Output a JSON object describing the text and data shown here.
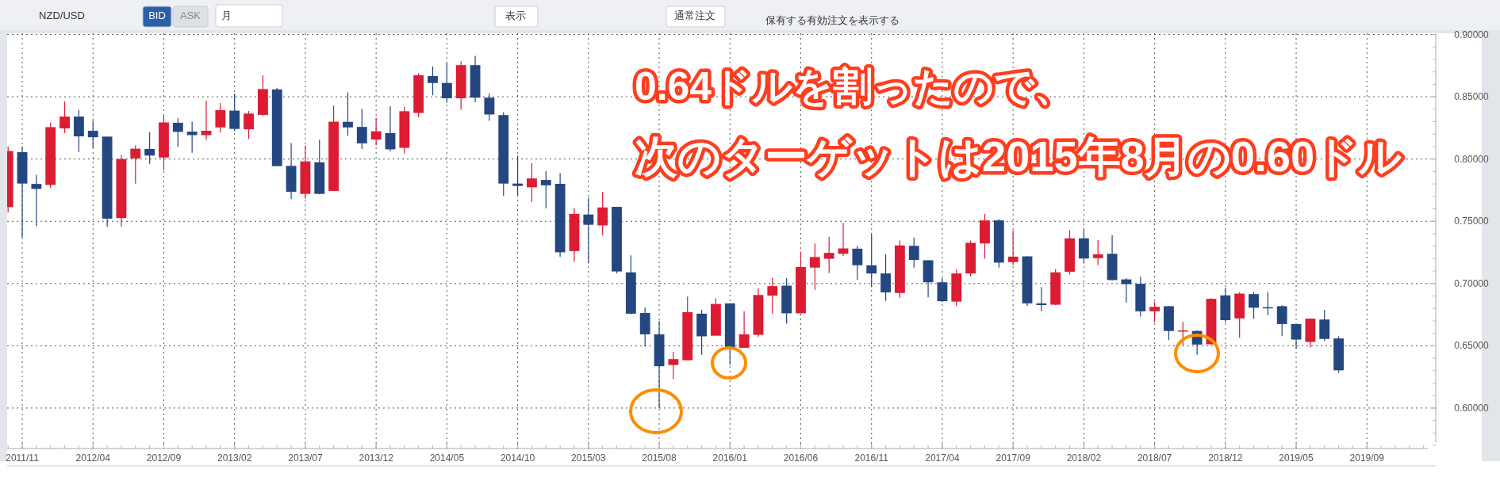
{
  "chart_data": {
    "type": "candlestick",
    "title": "0.64ドルを割ったので、",
    "subtitle": "次のターゲットは2015年8月の0.60ドル",
    "annotations": [
      "NZD/USD",
      "BID",
      "ASK",
      "月",
      "表示",
      "通常注文",
      "保有する有効注文を表示する"
    ],
    "x": [
      "2011-10",
      "2011-11",
      "2011-12",
      "2012-01",
      "2012-02",
      "2012-03",
      "2012-04",
      "2012-05",
      "2012-06",
      "2012-07",
      "2012-08",
      "2012-09",
      "2012-10",
      "2012-11",
      "2012-12",
      "2013-01",
      "2013-02",
      "2013-03",
      "2013-04",
      "2013-05",
      "2013-06",
      "2013-07",
      "2013-08",
      "2013-09",
      "2013-10",
      "2013-11",
      "2013-12",
      "2014-01",
      "2014-02",
      "2014-03",
      "2014-04",
      "2014-05",
      "2014-06",
      "2014-07",
      "2014-08",
      "2014-09",
      "2014-10",
      "2014-11",
      "2014-12",
      "2015-01",
      "2015-02",
      "2015-03",
      "2015-04",
      "2015-05",
      "2015-06",
      "2015-07",
      "2015-08",
      "2015-09",
      "2015-10",
      "2015-11",
      "2015-12",
      "2016-01",
      "2016-02",
      "2016-03",
      "2016-04",
      "2016-05",
      "2016-06",
      "2016-07",
      "2016-08",
      "2016-09",
      "2016-10",
      "2016-11",
      "2016-12",
      "2017-01",
      "2017-02",
      "2017-03",
      "2017-04",
      "2017-05",
      "2017-06",
      "2017-07",
      "2017-08",
      "2017-09",
      "2017-10",
      "2017-11",
      "2017-12",
      "2018-01",
      "2018-02",
      "2018-03",
      "2018-04",
      "2018-05",
      "2018-06",
      "2018-07",
      "2018-08",
      "2018-09",
      "2018-10",
      "2018-11",
      "2018-12",
      "2019-01",
      "2019-02",
      "2019-03",
      "2019-04",
      "2019-05",
      "2019-06",
      "2019-07",
      "2019-08"
    ],
    "ohlc": [
      [
        0.7614,
        0.81,
        0.757,
        0.8064
      ],
      [
        0.8055,
        0.81,
        0.737,
        0.7803
      ],
      [
        0.78,
        0.7874,
        0.746,
        0.776
      ],
      [
        0.7792,
        0.8294,
        0.7768,
        0.8256
      ],
      [
        0.8246,
        0.8462,
        0.8209,
        0.8341
      ],
      [
        0.8341,
        0.8396,
        0.8057,
        0.8182
      ],
      [
        0.8227,
        0.8308,
        0.8088,
        0.8175
      ],
      [
        0.818,
        0.818,
        0.7455,
        0.7521
      ],
      [
        0.7526,
        0.8033,
        0.7455,
        0.8
      ],
      [
        0.8005,
        0.8111,
        0.7803,
        0.8083
      ],
      [
        0.8081,
        0.8216,
        0.7962,
        0.8028
      ],
      [
        0.8012,
        0.8348,
        0.791,
        0.8294
      ],
      [
        0.8291,
        0.8327,
        0.8097,
        0.8218
      ],
      [
        0.822,
        0.83,
        0.805,
        0.8192
      ],
      [
        0.8192,
        0.8467,
        0.8154,
        0.8227
      ],
      [
        0.8254,
        0.845,
        0.8211,
        0.8393
      ],
      [
        0.8389,
        0.8526,
        0.8223,
        0.8242
      ],
      [
        0.8239,
        0.8386,
        0.8161,
        0.8365
      ],
      [
        0.8355,
        0.8673,
        0.8348,
        0.8562
      ],
      [
        0.8559,
        0.8573,
        0.7943,
        0.7943
      ],
      [
        0.7945,
        0.8128,
        0.768,
        0.7737
      ],
      [
        0.772,
        0.8109,
        0.768,
        0.7981
      ],
      [
        0.7974,
        0.8156,
        0.7716,
        0.772
      ],
      [
        0.7744,
        0.8429,
        0.7744,
        0.83
      ],
      [
        0.8299,
        0.8536,
        0.8187,
        0.8254
      ],
      [
        0.8258,
        0.8403,
        0.8081,
        0.8126
      ],
      [
        0.8156,
        0.833,
        0.8109,
        0.8223
      ],
      [
        0.8209,
        0.8424,
        0.8062,
        0.8078
      ],
      [
        0.809,
        0.842,
        0.8045,
        0.8384
      ],
      [
        0.837,
        0.869,
        0.8336,
        0.8673
      ],
      [
        0.8666,
        0.8744,
        0.8512,
        0.8611
      ],
      [
        0.8611,
        0.8773,
        0.8453,
        0.8488
      ],
      [
        0.8488,
        0.8784,
        0.8396,
        0.8754
      ],
      [
        0.8754,
        0.8829,
        0.8457,
        0.8493
      ],
      [
        0.8493,
        0.8526,
        0.8306,
        0.8358
      ],
      [
        0.8353,
        0.8377,
        0.7706,
        0.7803
      ],
      [
        0.7803,
        0.8028,
        0.7706,
        0.7784
      ],
      [
        0.7773,
        0.7967,
        0.7656,
        0.7844
      ],
      [
        0.7832,
        0.7903,
        0.7604,
        0.7789
      ],
      [
        0.7801,
        0.7886,
        0.7216,
        0.7251
      ],
      [
        0.7261,
        0.7607,
        0.7175,
        0.7559
      ],
      [
        0.7554,
        0.769,
        0.7163,
        0.7472
      ],
      [
        0.7467,
        0.7737,
        0.7389,
        0.7611
      ],
      [
        0.7616,
        0.7616,
        0.7081,
        0.7097
      ],
      [
        0.709,
        0.7227,
        0.6754,
        0.6758
      ],
      [
        0.6763,
        0.6808,
        0.6493,
        0.6592
      ],
      [
        0.6592,
        0.6701,
        0.6,
        0.6336
      ],
      [
        0.6346,
        0.645,
        0.6232,
        0.6393
      ],
      [
        0.6384,
        0.6896,
        0.6384,
        0.677
      ],
      [
        0.6758,
        0.6789,
        0.6427,
        0.6576
      ],
      [
        0.6581,
        0.6882,
        0.6581,
        0.6836
      ],
      [
        0.6841,
        0.6841,
        0.6346,
        0.6481
      ],
      [
        0.6484,
        0.6777,
        0.6484,
        0.6592
      ],
      [
        0.6588,
        0.6962,
        0.6571,
        0.6908
      ],
      [
        0.6903,
        0.7045,
        0.6758,
        0.6979
      ],
      [
        0.6983,
        0.7045,
        0.6678,
        0.6761
      ],
      [
        0.6761,
        0.7256,
        0.6761,
        0.7133
      ],
      [
        0.7128,
        0.7322,
        0.695,
        0.7213
      ],
      [
        0.7199,
        0.7374,
        0.7085,
        0.7246
      ],
      [
        0.7239,
        0.7488,
        0.722,
        0.7282
      ],
      [
        0.728,
        0.7303,
        0.7031,
        0.7147
      ],
      [
        0.7147,
        0.7393,
        0.6972,
        0.7081
      ],
      [
        0.7081,
        0.7235,
        0.686,
        0.6929
      ],
      [
        0.6924,
        0.7346,
        0.6884,
        0.7306
      ],
      [
        0.7303,
        0.737,
        0.7128,
        0.719
      ],
      [
        0.7187,
        0.7187,
        0.6889,
        0.701
      ],
      [
        0.701,
        0.7045,
        0.6853,
        0.6858
      ],
      [
        0.6855,
        0.7114,
        0.6818,
        0.7081
      ],
      [
        0.7081,
        0.7346,
        0.7057,
        0.7327
      ],
      [
        0.7322,
        0.7559,
        0.72,
        0.7507
      ],
      [
        0.7507,
        0.7517,
        0.7128,
        0.7168
      ],
      [
        0.7173,
        0.7429,
        0.7149,
        0.7216
      ],
      [
        0.7218,
        0.722,
        0.682,
        0.6841
      ],
      [
        0.6841,
        0.6972,
        0.6777,
        0.6827
      ],
      [
        0.683,
        0.7116,
        0.6825,
        0.709
      ],
      [
        0.7095,
        0.7427,
        0.7071,
        0.7363
      ],
      [
        0.7363,
        0.7434,
        0.7161,
        0.7201
      ],
      [
        0.7204,
        0.735,
        0.7149,
        0.7235
      ],
      [
        0.7239,
        0.7389,
        0.7024,
        0.7028
      ],
      [
        0.7033,
        0.7043,
        0.6848,
        0.6995
      ],
      [
        0.6998,
        0.7055,
        0.6735,
        0.6777
      ],
      [
        0.6777,
        0.6853,
        0.669,
        0.6813
      ],
      [
        0.6818,
        0.682,
        0.6545,
        0.6619
      ],
      [
        0.6616,
        0.6694,
        0.6505,
        0.6623
      ],
      [
        0.6619,
        0.6623,
        0.6427,
        0.651
      ],
      [
        0.6512,
        0.6882,
        0.6512,
        0.6877
      ],
      [
        0.6905,
        0.6967,
        0.6687,
        0.6706
      ],
      [
        0.672,
        0.6931,
        0.6564,
        0.6919
      ],
      [
        0.6915,
        0.6931,
        0.6716,
        0.6806
      ],
      [
        0.681,
        0.6934,
        0.6746,
        0.6806
      ],
      [
        0.6818,
        0.6825,
        0.6581,
        0.6675
      ],
      [
        0.6675,
        0.6675,
        0.6476,
        0.655
      ],
      [
        0.6531,
        0.6718,
        0.6486,
        0.6718
      ],
      [
        0.6711,
        0.6789,
        0.6538,
        0.6555
      ],
      [
        0.6559,
        0.6576,
        0.6284,
        0.6303
      ]
    ],
    "colors": [
      "#dc1c32",
      "#254780",
      "#254780",
      "#dc1c32",
      "#dc1c32",
      "#254780",
      "#254780",
      "#254780",
      "#dc1c32",
      "#dc1c32",
      "#254780",
      "#dc1c32",
      "#254780",
      "#254780",
      "#dc1c32",
      "#dc1c32",
      "#254780",
      "#dc1c32",
      "#dc1c32",
      "#254780",
      "#254780",
      "#dc1c32",
      "#254780",
      "#dc1c32",
      "#254780",
      "#254780",
      "#dc1c32",
      "#254780",
      "#dc1c32",
      "#dc1c32",
      "#254780",
      "#254780",
      "#dc1c32",
      "#254780",
      "#254780",
      "#254780",
      "#254780",
      "#dc1c32",
      "#254780",
      "#254780",
      "#dc1c32",
      "#254780",
      "#dc1c32",
      "#254780",
      "#254780",
      "#254780",
      "#254780",
      "#dc1c32",
      "#dc1c32",
      "#254780",
      "#dc1c32",
      "#254780",
      "#dc1c32",
      "#dc1c32",
      "#dc1c32",
      "#254780",
      "#dc1c32",
      "#dc1c32",
      "#dc1c32",
      "#dc1c32",
      "#254780",
      "#254780",
      "#254780",
      "#dc1c32",
      "#254780",
      "#254780",
      "#254780",
      "#dc1c32",
      "#dc1c32",
      "#dc1c32",
      "#254780",
      "#dc1c32",
      "#254780",
      "#254780",
      "#dc1c32",
      "#dc1c32",
      "#254780",
      "#dc1c32",
      "#254780",
      "#254780",
      "#254780",
      "#dc1c32",
      "#254780",
      "#dc1c32",
      "#254780",
      "#dc1c32",
      "#254780",
      "#dc1c32",
      "#254780",
      "#254780",
      "#254780",
      "#254780",
      "#dc1c32",
      "#254780",
      "#254780"
    ],
    "xlim": [
      "2011-09-29",
      "2020-02-10"
    ],
    "xticks": [
      {
        "value": "2011-11",
        "label": "2011/11"
      },
      {
        "value": "2012-04",
        "label": "2012/04"
      },
      {
        "value": "2012-09",
        "label": "2012/09"
      },
      {
        "value": "2013-02",
        "label": "2013/02"
      },
      {
        "value": "2013-07",
        "label": "2013/07"
      },
      {
        "value": "2013-12",
        "label": "2013/12"
      },
      {
        "value": "2014-05",
        "label": "2014/05"
      },
      {
        "value": "2014-10",
        "label": "2014/10"
      },
      {
        "value": "2015-03",
        "label": "2015/03"
      },
      {
        "value": "2015-08",
        "label": "2015/08"
      },
      {
        "value": "2016-01",
        "label": "2016/01"
      },
      {
        "value": "2016-06",
        "label": "2016/06"
      },
      {
        "value": "2016-11",
        "label": "2016/11"
      },
      {
        "value": "2017-04",
        "label": "2017/04"
      },
      {
        "value": "2017-09",
        "label": "2017/09"
      },
      {
        "value": "2018-02",
        "label": "2018/02"
      },
      {
        "value": "2018-07",
        "label": "2018/07"
      },
      {
        "value": "2018-12",
        "label": "2018/12"
      },
      {
        "value": "2019-05",
        "label": "2019/05"
      },
      {
        "value": "2019-10",
        "label": "2019/09"
      }
    ],
    "ylim": [
      0.5675,
      0.901
    ],
    "yticks": [
      {
        "value": 0.6,
        "label": "0.60000"
      },
      {
        "value": 0.65,
        "label": "0.65000"
      },
      {
        "value": 0.7,
        "label": "0.70000"
      },
      {
        "value": 0.75,
        "label": "0.75000"
      },
      {
        "value": 0.8,
        "label": "0.80000"
      },
      {
        "value": 0.85,
        "label": "0.85000"
      },
      {
        "value": 0.9,
        "label": "0.90000"
      }
    ],
    "grid": true
  }
}
